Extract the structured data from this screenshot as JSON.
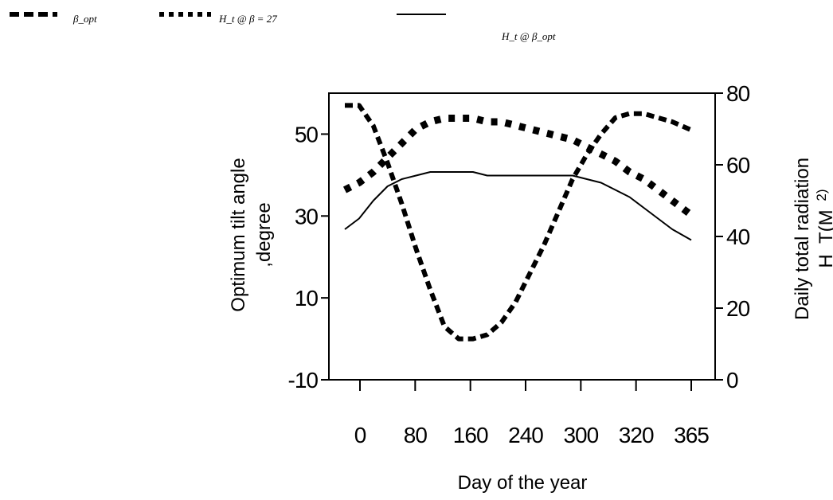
{
  "chart_data": {
    "type": "line",
    "xlabel": "Day of the year",
    "ylabel_left": "Optimum tilt angle ,degree",
    "ylabel_left_line1": "Optimum tilt angle",
    "ylabel_left_line2": ",degree",
    "ylabel_right": "Daily total radiation H_T(M ²)",
    "ylabel_right_line1": "Daily total radiation",
    "ylabel_right_line2": "H_T(M",
    "ylabel_right_sup": "2)",
    "x_tick_labels": [
      "0",
      "80",
      "160",
      "240",
      "300",
      "320",
      "365"
    ],
    "y_left_ticks": [
      -10,
      10,
      30,
      50
    ],
    "y_left_lim": [
      -10,
      60
    ],
    "y_right_ticks": [
      0,
      20,
      40,
      60,
      80
    ],
    "y_right_lim": [
      0,
      80
    ],
    "grid": false,
    "legend_position": "top",
    "legend": [
      {
        "label": "β_opt",
        "style": "dashed-thick",
        "axis": "left"
      },
      {
        "label": "H_t @ β = 27",
        "style": "dotted-thick",
        "axis": "right"
      },
      {
        "label": "H_t @ β_opt",
        "style": "solid",
        "axis": "right"
      }
    ],
    "series": [
      {
        "name": "β_opt",
        "axis": "left",
        "style": "dashed-thick",
        "x": [
          0,
          15,
          30,
          45,
          60,
          75,
          90,
          105,
          120,
          135,
          150,
          165,
          180,
          195,
          210,
          225,
          240,
          255,
          270,
          285,
          300,
          315,
          330,
          345,
          365
        ],
        "y": [
          57,
          57,
          52,
          43,
          33,
          22,
          12,
          3,
          0,
          0,
          1,
          4,
          9,
          16,
          23,
          31,
          39,
          45,
          50,
          54,
          55,
          55,
          54,
          53,
          51
        ]
      },
      {
        "name": "H_t @ β = 27",
        "axis": "right",
        "style": "dotted-thick",
        "x": [
          0,
          15,
          30,
          45,
          60,
          75,
          90,
          105,
          120,
          135,
          150,
          165,
          180,
          195,
          210,
          225,
          240,
          255,
          270,
          285,
          300,
          315,
          330,
          345,
          365
        ],
        "y": [
          53,
          55,
          58,
          62,
          66,
          70,
          72,
          73,
          73,
          73,
          72,
          72,
          71,
          70,
          69,
          68,
          67,
          65,
          63,
          61,
          58,
          56,
          53,
          50,
          46
        ]
      },
      {
        "name": "H_t @ β_opt",
        "axis": "right",
        "style": "solid",
        "x": [
          0,
          15,
          30,
          45,
          60,
          75,
          90,
          105,
          120,
          135,
          150,
          165,
          180,
          195,
          210,
          225,
          240,
          255,
          270,
          285,
          300,
          315,
          330,
          345,
          365
        ],
        "y": [
          42,
          45,
          50,
          54,
          56,
          57,
          58,
          58,
          58,
          58,
          57,
          57,
          57,
          57,
          57,
          57,
          57,
          56,
          55,
          53,
          51,
          48,
          45,
          42,
          39
        ]
      }
    ]
  }
}
